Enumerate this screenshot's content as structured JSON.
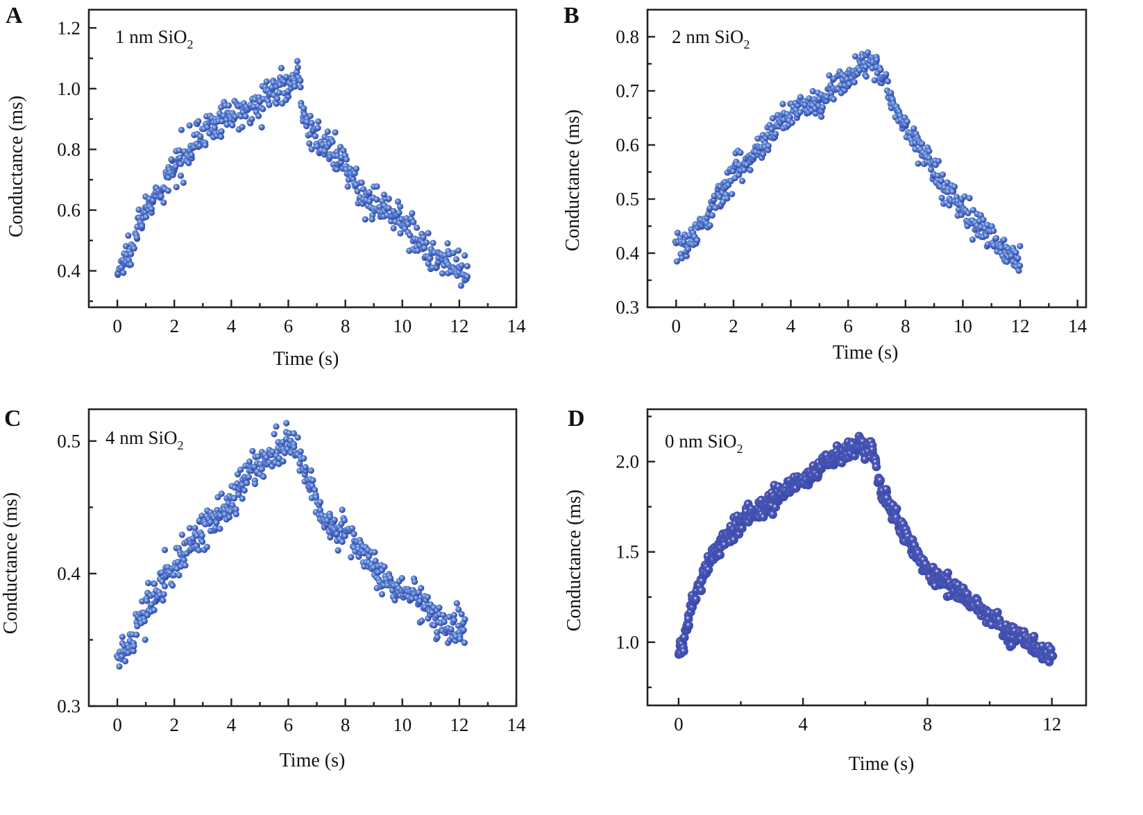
{
  "chart_data": [
    {
      "id": "A",
      "type": "scatter",
      "panel_label": "A",
      "annotation": "1 nm SiO",
      "annotation_subscript": "2",
      "xlabel": "Time (s)",
      "ylabel": "Conductance (ms)",
      "xlim": [
        -1,
        14
      ],
      "ylim": [
        0.28,
        1.26
      ],
      "xticks": [
        0,
        2,
        4,
        6,
        8,
        10,
        12,
        14
      ],
      "xtick_labels": [
        "0",
        "2",
        "4",
        "6",
        "8",
        "10",
        "12",
        "14"
      ],
      "yticks": [
        0.4,
        0.6,
        0.8,
        1.0,
        1.2
      ],
      "ytick_labels": [
        "0.4",
        "0.6",
        "0.8",
        "1.0",
        "1.2"
      ],
      "yminor": [
        0.3,
        0.5,
        0.7,
        0.9,
        1.1
      ],
      "xminor": [
        1,
        3,
        5,
        7,
        9,
        11,
        13
      ],
      "grid": false,
      "marker_color": "#3a4fb0",
      "marker_highlight": "#9fd4f5",
      "trend": {
        "x": [
          0.0,
          0.3,
          0.7,
          1.0,
          1.5,
          2.0,
          2.5,
          3.0,
          4.0,
          5.0,
          6.0,
          6.3,
          6.6,
          7.0,
          7.5,
          8.0,
          8.5,
          9.0,
          9.5,
          10.0,
          10.5,
          11.0,
          11.5,
          12.0,
          12.3
        ],
        "y": [
          0.39,
          0.44,
          0.55,
          0.6,
          0.65,
          0.74,
          0.81,
          0.86,
          0.91,
          0.96,
          1.02,
          1.05,
          0.89,
          0.84,
          0.79,
          0.74,
          0.66,
          0.62,
          0.6,
          0.58,
          0.5,
          0.46,
          0.43,
          0.4,
          0.37
        ],
        "spread": 0.045,
        "n_points": 520
      }
    },
    {
      "id": "B",
      "type": "scatter",
      "panel_label": "B",
      "annotation": "2 nm SiO",
      "annotation_subscript": "2",
      "xlabel": "Time (s)",
      "ylabel": "Conductance (ms)",
      "xlim": [
        -1,
        14.3
      ],
      "ylim": [
        0.3,
        0.85
      ],
      "xticks": [
        0,
        2,
        4,
        6,
        8,
        10,
        12,
        14
      ],
      "xtick_labels": [
        "0",
        "2",
        "4",
        "6",
        "8",
        "10",
        "12",
        "14"
      ],
      "yticks": [
        0.3,
        0.4,
        0.5,
        0.6,
        0.7,
        0.8
      ],
      "ytick_labels": [
        "0.3",
        "0.4",
        "0.5",
        "0.6",
        "0.7",
        "0.8"
      ],
      "yminor": [
        0.35,
        0.45,
        0.55,
        0.65,
        0.75
      ],
      "xminor": [
        1,
        3,
        5,
        7,
        9,
        11,
        13
      ],
      "grid": false,
      "marker_color": "#3a4fb0",
      "marker_highlight": "#9fd4f5",
      "trend": {
        "x": [
          0.0,
          0.5,
          1.0,
          1.5,
          2.0,
          2.5,
          3.0,
          3.5,
          4.0,
          5.0,
          6.0,
          6.5,
          7.0,
          7.5,
          8.0,
          8.5,
          9.0,
          9.5,
          10.0,
          10.5,
          11.0,
          11.5,
          12.0
        ],
        "y": [
          0.42,
          0.42,
          0.46,
          0.51,
          0.55,
          0.58,
          0.6,
          0.64,
          0.66,
          0.68,
          0.73,
          0.745,
          0.75,
          0.69,
          0.63,
          0.6,
          0.55,
          0.51,
          0.48,
          0.45,
          0.43,
          0.41,
          0.38
        ],
        "spread": 0.022,
        "n_points": 500
      }
    },
    {
      "id": "C",
      "type": "scatter",
      "panel_label": "C",
      "annotation": "4 nm SiO",
      "annotation_subscript": "2",
      "xlabel": "Time (s)",
      "ylabel": "Conductance (ms)",
      "xlim": [
        -1,
        14
      ],
      "ylim": [
        0.3,
        0.524
      ],
      "xticks": [
        0,
        2,
        4,
        6,
        8,
        10,
        12,
        14
      ],
      "xtick_labels": [
        "0",
        "2",
        "4",
        "6",
        "8",
        "10",
        "12",
        "14"
      ],
      "yticks": [
        0.3,
        0.4,
        0.5
      ],
      "ytick_labels": [
        "0.3",
        "0.4",
        "0.5"
      ],
      "yminor": [
        0.35,
        0.45
      ],
      "xminor": [
        1,
        3,
        5,
        7,
        9,
        11,
        13
      ],
      "grid": false,
      "marker_color": "#3a4fb0",
      "marker_highlight": "#9fd4f5",
      "trend": {
        "x": [
          0.0,
          0.3,
          0.6,
          1.0,
          1.5,
          2.0,
          2.5,
          3.0,
          3.5,
          4.0,
          4.5,
          5.0,
          5.5,
          6.0,
          6.4,
          6.8,
          7.2,
          7.6,
          8.0,
          8.5,
          9.0,
          9.5,
          10.0,
          10.5,
          11.0,
          11.5,
          12.0,
          12.2
        ],
        "y": [
          0.335,
          0.34,
          0.355,
          0.375,
          0.39,
          0.405,
          0.42,
          0.435,
          0.445,
          0.455,
          0.47,
          0.48,
          0.49,
          0.495,
          0.49,
          0.465,
          0.445,
          0.43,
          0.435,
          0.42,
          0.405,
          0.39,
          0.385,
          0.38,
          0.37,
          0.36,
          0.36,
          0.36
        ],
        "spread": 0.011,
        "n_points": 520
      }
    },
    {
      "id": "D",
      "type": "scatter",
      "panel_label": "D",
      "annotation": "0 nm SiO",
      "annotation_subscript": "2",
      "xlabel": "Time (s)",
      "ylabel": "Conductance (ms)",
      "xlim": [
        -1,
        13.1
      ],
      "ylim": [
        0.65,
        2.29
      ],
      "xticks": [
        0,
        4,
        8,
        12
      ],
      "xtick_labels": [
        "0",
        "4",
        "8",
        "12"
      ],
      "yticks": [
        1.0,
        1.5,
        2.0
      ],
      "ytick_labels": [
        "1.0",
        "1.5",
        "2.0"
      ],
      "yminor": [
        0.75,
        1.25,
        1.75,
        2.25
      ],
      "xminor": [
        2,
        6,
        10
      ],
      "grid": false,
      "marker_color": "#3c4aa8",
      "marker_highlight": "#ffffff",
      "trend": {
        "x": [
          0.0,
          0.2,
          0.4,
          0.7,
          1.0,
          1.5,
          2.0,
          3.0,
          4.0,
          5.0,
          5.8,
          6.2,
          6.5,
          7.0,
          7.5,
          8.0,
          8.5,
          9.0,
          9.5,
          10.0,
          10.5,
          11.0,
          11.5,
          12.0
        ],
        "y": [
          0.92,
          1.03,
          1.2,
          1.33,
          1.45,
          1.58,
          1.67,
          1.78,
          1.9,
          2.02,
          2.09,
          2.1,
          1.85,
          1.68,
          1.52,
          1.4,
          1.34,
          1.28,
          1.22,
          1.14,
          1.07,
          1.03,
          0.97,
          0.92
        ],
        "spread": 0.045,
        "n_points": 640
      }
    }
  ]
}
